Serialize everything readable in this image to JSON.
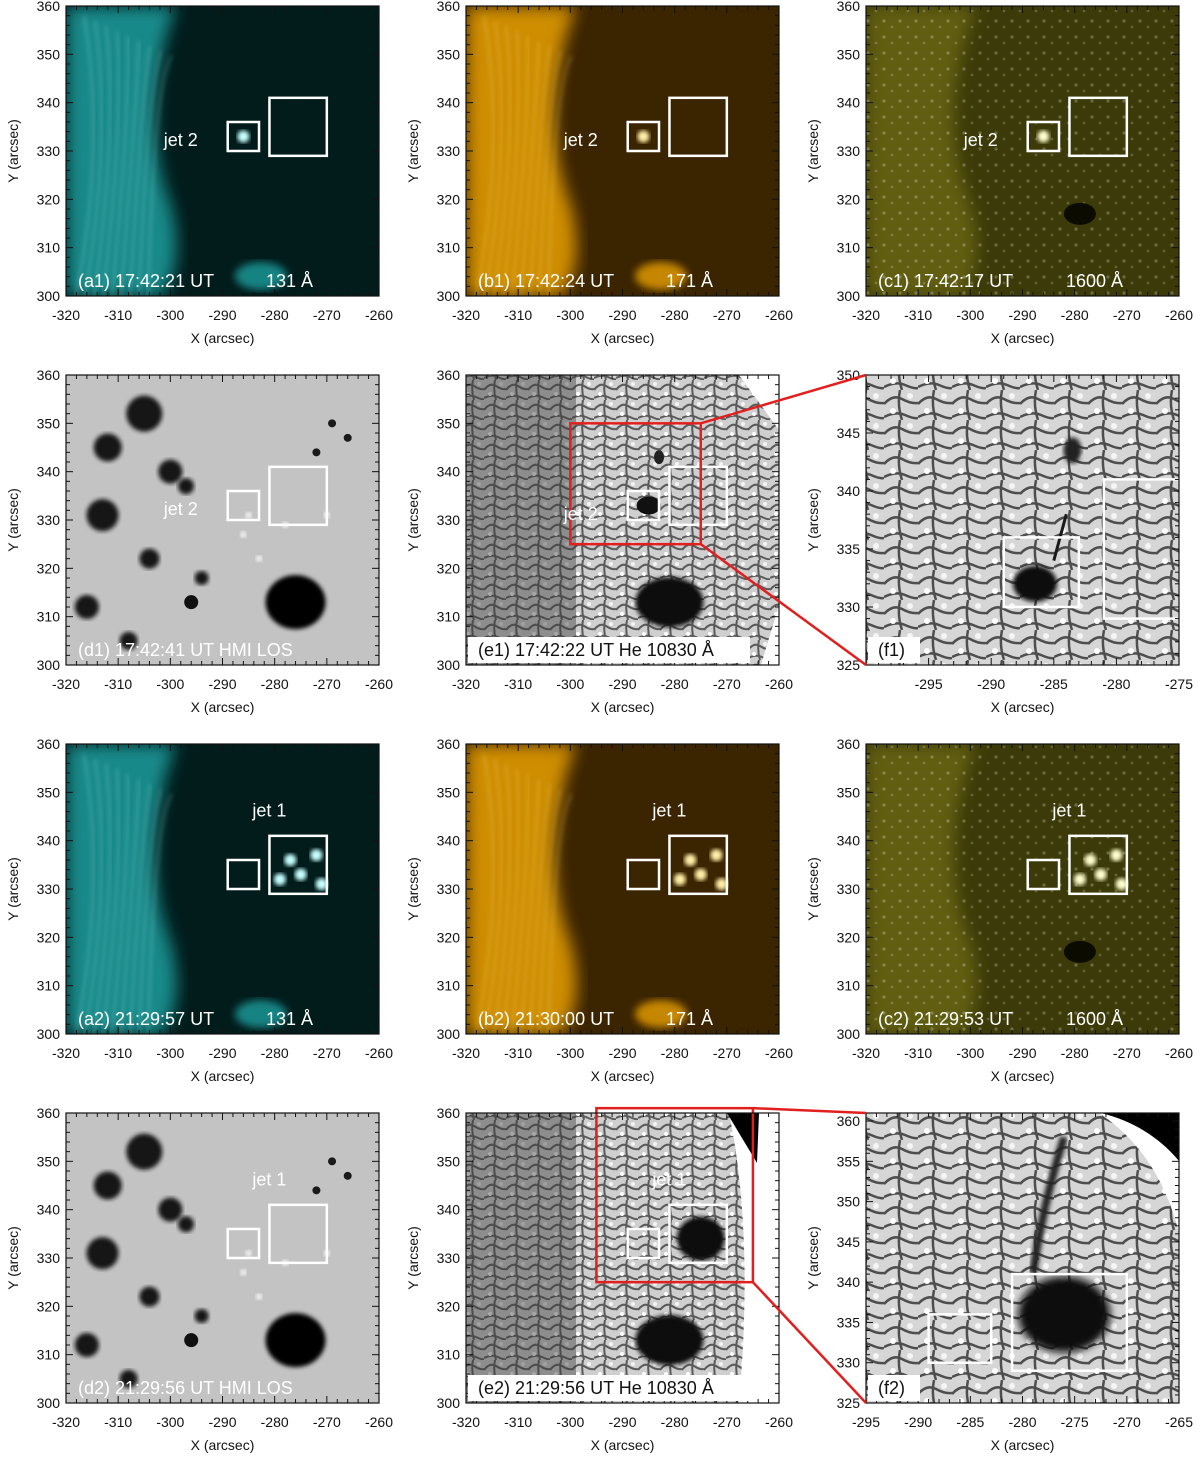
{
  "figure": {
    "axis_labels": {
      "x": "X (arcsec)",
      "y": "Y (arcsec)"
    },
    "jet_labels": {
      "jet1": "jet 1",
      "jet2": "jet 2"
    },
    "panels": [
      {
        "id": "a1",
        "label": "(a1) 17:42:21 UT",
        "channel": "131 Å",
        "kind": "euv131",
        "xlim": [
          -320,
          -260
        ],
        "ylim": [
          300,
          360
        ],
        "xticks": [
          -320,
          -310,
          -300,
          -290,
          -280,
          -270,
          -260
        ],
        "yticks": [
          300,
          310,
          320,
          330,
          340,
          350,
          360
        ],
        "boxes": [
          {
            "x": [
              -289,
              -283
            ],
            "y": [
              330,
              336
            ]
          },
          {
            "x": [
              -281,
              -270
            ],
            "y": [
              329,
              341
            ]
          }
        ],
        "jet": {
          "text": "jet 2",
          "x": -298,
          "y": 331
        }
      },
      {
        "id": "b1",
        "label": "(b1) 17:42:24 UT",
        "channel": "171 Å",
        "kind": "euv171",
        "xlim": [
          -320,
          -260
        ],
        "ylim": [
          300,
          360
        ],
        "xticks": [
          -320,
          -310,
          -300,
          -290,
          -280,
          -270,
          -260
        ],
        "yticks": [
          300,
          310,
          320,
          330,
          340,
          350,
          360
        ],
        "boxes": [
          {
            "x": [
              -289,
              -283
            ],
            "y": [
              330,
              336
            ]
          },
          {
            "x": [
              -281,
              -270
            ],
            "y": [
              329,
              341
            ]
          }
        ],
        "jet": {
          "text": "jet 2",
          "x": -298,
          "y": 331
        }
      },
      {
        "id": "c1",
        "label": "(c1) 17:42:17 UT",
        "channel": "1600 Å",
        "kind": "uv1600",
        "xlim": [
          -320,
          -260
        ],
        "ylim": [
          300,
          360
        ],
        "xticks": [
          -320,
          -310,
          -300,
          -290,
          -280,
          -270,
          -260
        ],
        "yticks": [
          300,
          310,
          320,
          330,
          340,
          350,
          360
        ],
        "boxes": [
          {
            "x": [
              -289,
              -283
            ],
            "y": [
              330,
              336
            ]
          },
          {
            "x": [
              -281,
              -270
            ],
            "y": [
              329,
              341
            ]
          }
        ],
        "jet": {
          "text": "jet 2",
          "x": -298,
          "y": 331
        }
      },
      {
        "id": "d1",
        "label": "(d1) 17:42:41 UT HMI LOS",
        "channel": "",
        "kind": "hmi",
        "xlim": [
          -320,
          -260
        ],
        "ylim": [
          300,
          360
        ],
        "xticks": [
          -320,
          -310,
          -300,
          -290,
          -280,
          -270,
          -260
        ],
        "yticks": [
          300,
          310,
          320,
          330,
          340,
          350,
          360
        ],
        "boxes": [
          {
            "x": [
              -289,
              -283
            ],
            "y": [
              330,
              336
            ]
          },
          {
            "x": [
              -281,
              -270
            ],
            "y": [
              329,
              341
            ]
          }
        ],
        "jet": {
          "text": "jet 2",
          "x": -298,
          "y": 331
        }
      },
      {
        "id": "e1",
        "label": "(e1) 17:42:22 UT He 10830 Å",
        "channel": "",
        "kind": "he",
        "xlim": [
          -320,
          -260
        ],
        "ylim": [
          300,
          360
        ],
        "xticks": [
          -320,
          -310,
          -300,
          -290,
          -280,
          -270,
          -260
        ],
        "yticks": [
          300,
          310,
          320,
          330,
          340,
          350,
          360
        ],
        "boxes": [
          {
            "x": [
              -289,
              -283
            ],
            "y": [
              330,
              336
            ]
          },
          {
            "x": [
              -281,
              -270
            ],
            "y": [
              329,
              341
            ]
          }
        ],
        "zoom": {
          "x": [
            -300,
            -275
          ],
          "y": [
            325,
            350
          ]
        },
        "jet": {
          "text": "jet 2",
          "x": -298,
          "y": 330
        }
      },
      {
        "id": "f1",
        "label": "(f1)",
        "channel": "",
        "kind": "hezoom",
        "xlim": [
          -300,
          -275
        ],
        "ylim": [
          325,
          350
        ],
        "xticks": [
          -295,
          -290,
          -285,
          -280,
          -275
        ],
        "yticks": [
          325,
          330,
          335,
          340,
          345,
          350
        ],
        "boxes": [
          {
            "x": [
              -289,
              -283
            ],
            "y": [
              330,
              336
            ]
          },
          {
            "x": [
              -281,
              -270
            ],
            "y": [
              329,
              341
            ]
          }
        ]
      },
      {
        "id": "a2",
        "label": "(a2) 21:29:57 UT",
        "channel": "131 Å",
        "kind": "euv131",
        "xlim": [
          -320,
          -260
        ],
        "ylim": [
          300,
          360
        ],
        "xticks": [
          -320,
          -310,
          -300,
          -290,
          -280,
          -270,
          -260
        ],
        "yticks": [
          300,
          310,
          320,
          330,
          340,
          350,
          360
        ],
        "boxes": [
          {
            "x": [
              -289,
              -283
            ],
            "y": [
              330,
              336
            ]
          },
          {
            "x": [
              -281,
              -270
            ],
            "y": [
              329,
              341
            ]
          }
        ],
        "jet": {
          "text": "jet 1",
          "x": -281,
          "y": 345
        }
      },
      {
        "id": "b2",
        "label": "(b2) 21:30:00 UT",
        "channel": "171 Å",
        "kind": "euv171",
        "xlim": [
          -320,
          -260
        ],
        "ylim": [
          300,
          360
        ],
        "xticks": [
          -320,
          -310,
          -300,
          -290,
          -280,
          -270,
          -260
        ],
        "yticks": [
          300,
          310,
          320,
          330,
          340,
          350,
          360
        ],
        "boxes": [
          {
            "x": [
              -289,
              -283
            ],
            "y": [
              330,
              336
            ]
          },
          {
            "x": [
              -281,
              -270
            ],
            "y": [
              329,
              341
            ]
          }
        ],
        "jet": {
          "text": "jet 1",
          "x": -281,
          "y": 345
        }
      },
      {
        "id": "c2",
        "label": "(c2) 21:29:53 UT",
        "channel": "1600 Å",
        "kind": "uv1600",
        "xlim": [
          -320,
          -260
        ],
        "ylim": [
          300,
          360
        ],
        "xticks": [
          -320,
          -310,
          -300,
          -290,
          -280,
          -270,
          -260
        ],
        "yticks": [
          300,
          310,
          320,
          330,
          340,
          350,
          360
        ],
        "boxes": [
          {
            "x": [
              -289,
              -283
            ],
            "y": [
              330,
              336
            ]
          },
          {
            "x": [
              -281,
              -270
            ],
            "y": [
              329,
              341
            ]
          }
        ],
        "jet": {
          "text": "jet 1",
          "x": -281,
          "y": 345
        }
      },
      {
        "id": "d2",
        "label": "(d2) 21:29:56 UT HMI LOS",
        "channel": "",
        "kind": "hmi",
        "xlim": [
          -320,
          -260
        ],
        "ylim": [
          300,
          360
        ],
        "xticks": [
          -320,
          -310,
          -300,
          -290,
          -280,
          -270,
          -260
        ],
        "yticks": [
          300,
          310,
          320,
          330,
          340,
          350,
          360
        ],
        "boxes": [
          {
            "x": [
              -289,
              -283
            ],
            "y": [
              330,
              336
            ]
          },
          {
            "x": [
              -281,
              -270
            ],
            "y": [
              329,
              341
            ]
          }
        ],
        "jet": {
          "text": "jet 1",
          "x": -281,
          "y": 345
        }
      },
      {
        "id": "e2",
        "label": "(e2) 21:29:56 UT He 10830 Å",
        "channel": "",
        "kind": "he",
        "xlim": [
          -320,
          -260
        ],
        "ylim": [
          300,
          360
        ],
        "xticks": [
          -320,
          -310,
          -300,
          -290,
          -280,
          -270,
          -260
        ],
        "yticks": [
          300,
          310,
          320,
          330,
          340,
          350,
          360
        ],
        "boxes": [
          {
            "x": [
              -289,
              -283
            ],
            "y": [
              330,
              336
            ]
          },
          {
            "x": [
              -281,
              -270
            ],
            "y": [
              329,
              341
            ]
          }
        ],
        "zoom": {
          "x": [
            -295,
            -265
          ],
          "y": [
            325,
            361
          ]
        },
        "jet": {
          "text": "jet 1",
          "x": -281,
          "y": 345
        }
      },
      {
        "id": "f2",
        "label": "(f2)",
        "channel": "",
        "kind": "hezoom2",
        "xlim": [
          -295,
          -265
        ],
        "ylim": [
          325,
          361
        ],
        "xticks": [
          -295,
          -290,
          -285,
          -280,
          -275,
          -270,
          -265
        ],
        "yticks": [
          325,
          330,
          335,
          340,
          345,
          350,
          355,
          360
        ],
        "boxes": [
          {
            "x": [
              -289,
              -283
            ],
            "y": [
              330,
              336
            ]
          },
          {
            "x": [
              -281,
              -270
            ],
            "y": [
              329,
              341
            ]
          }
        ]
      }
    ]
  }
}
